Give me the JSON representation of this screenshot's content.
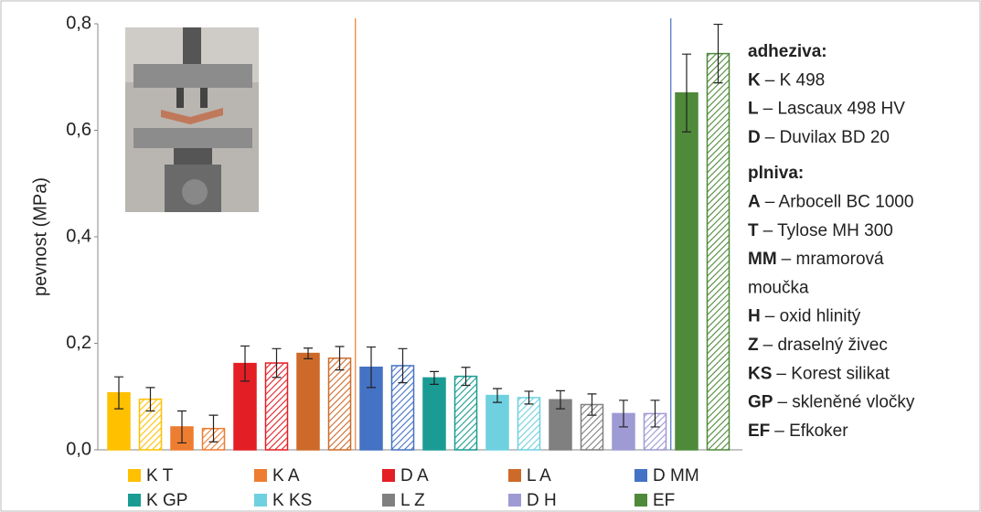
{
  "chart_data": {
    "type": "bar",
    "ylabel": "pevnost (MPa)",
    "ylim": [
      0,
      0.8
    ],
    "yticks": [
      {
        "value": 0,
        "label": "0,0"
      },
      {
        "value": 0.2,
        "label": "0,2"
      },
      {
        "value": 0.4,
        "label": "0,4"
      },
      {
        "value": 0.6,
        "label": "0,6"
      },
      {
        "value": 0.8,
        "label": "0,8"
      }
    ],
    "series": [
      {
        "name": "K T",
        "color": "#ffc000",
        "values": [
          0.107,
          0.095
        ],
        "errors": [
          0.03,
          0.022
        ]
      },
      {
        "name": "K A",
        "color": "#ed7d31",
        "values": [
          0.043,
          0.04
        ],
        "errors": [
          0.03,
          0.025
        ]
      },
      {
        "name": "D A",
        "color": "#e31e24",
        "values": [
          0.162,
          0.163
        ],
        "errors": [
          0.033,
          0.027
        ]
      },
      {
        "name": "L A",
        "color": "#cd6a2a",
        "values": [
          0.181,
          0.172
        ],
        "errors": [
          0.01,
          0.022
        ]
      },
      {
        "name": "D MM",
        "color": "#4472c4",
        "values": [
          0.155,
          0.158
        ],
        "errors": [
          0.038,
          0.032
        ]
      },
      {
        "name": "K GP",
        "color": "#1a9c94",
        "values": [
          0.135,
          0.138
        ],
        "errors": [
          0.012,
          0.017
        ]
      },
      {
        "name": "K KS",
        "color": "#6fd0e0",
        "values": [
          0.102,
          0.098
        ],
        "errors": [
          0.013,
          0.012
        ]
      },
      {
        "name": "L Z",
        "color": "#808080",
        "values": [
          0.094,
          0.085
        ],
        "errors": [
          0.017,
          0.02
        ]
      },
      {
        "name": "D H",
        "color": "#9e9ad4",
        "values": [
          0.068,
          0.068
        ],
        "errors": [
          0.025,
          0.025
        ]
      },
      {
        "name": "EF",
        "color": "#4e8a3a",
        "values": [
          0.67,
          0.744
        ],
        "errors": [
          0.073,
          0.055
        ]
      }
    ],
    "notes": [
      {
        "key": "adheziva:"
      },
      {
        "key": "K",
        "text": "– K 498"
      },
      {
        "key": "L",
        "text": "– Lascaux 498 HV"
      },
      {
        "key": "D",
        "text": "– Duvilax BD 20"
      },
      {
        "key": "plniva:"
      },
      {
        "key": "A",
        "text": "– Arbocell BC 1000"
      },
      {
        "key": "T",
        "text": "– Tylose MH 300"
      },
      {
        "key": "MM",
        "text": "– mramorová"
      },
      {
        "text": "moučka"
      },
      {
        "key": "H",
        "text": "– oxid hlinitý"
      },
      {
        "key": "Z",
        "text": "– draselný živec"
      },
      {
        "key": "KS",
        "text": "– Korest silikat"
      },
      {
        "key": "GP",
        "text": "– skleněné vločky"
      },
      {
        "key": "EF",
        "text": "– Efkoker"
      }
    ]
  }
}
